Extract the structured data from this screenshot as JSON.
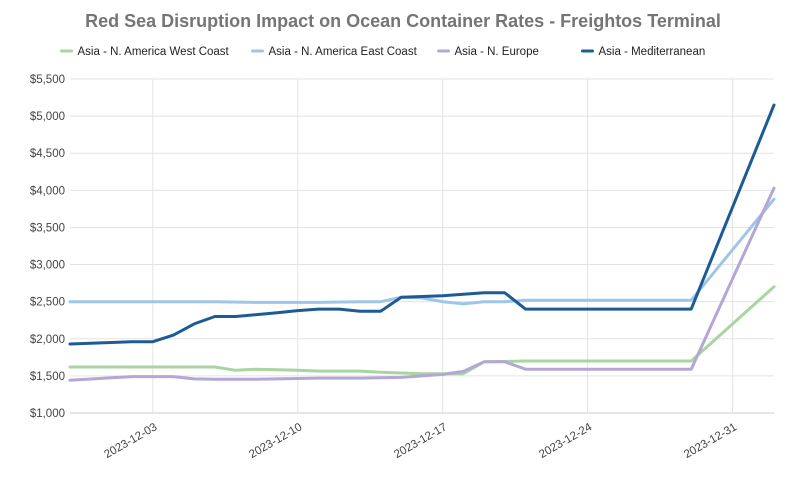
{
  "chart_data": {
    "type": "line",
    "title": "Red Sea Disruption Impact on Ocean Container Rates - Freightos Terminal",
    "xlabel": "",
    "ylabel": "",
    "x_start": "2023-11-29",
    "x_end": "2024-01-02",
    "x_ticks": [
      "2023-12-03",
      "2023-12-10",
      "2023-12-17",
      "2023-12-24",
      "2023-12-31"
    ],
    "ylim": [
      1000,
      5500
    ],
    "y_ticks": [
      1000,
      1500,
      2000,
      2500,
      3000,
      3500,
      4000,
      4500,
      5000,
      5500
    ],
    "y_tick_labels": [
      "$1,000",
      "$1,500",
      "$2,000",
      "$2,500",
      "$3,000",
      "$3,500",
      "$4,000",
      "$4,500",
      "$5,000",
      "$5,500"
    ],
    "grid": true,
    "legend_position": "top",
    "series": [
      {
        "name": "Asia - N. America West Coast",
        "color": "#a8d5a0",
        "points": [
          [
            "2023-11-29",
            1620
          ],
          [
            "2023-12-01",
            1620
          ],
          [
            "2023-12-04",
            1620
          ],
          [
            "2023-12-06",
            1620
          ],
          [
            "2023-12-07",
            1575
          ],
          [
            "2023-12-08",
            1590
          ],
          [
            "2023-12-10",
            1575
          ],
          [
            "2023-12-11",
            1565
          ],
          [
            "2023-12-13",
            1565
          ],
          [
            "2023-12-14",
            1550
          ],
          [
            "2023-12-16",
            1530
          ],
          [
            "2023-12-18",
            1530
          ],
          [
            "2023-12-19",
            1690
          ],
          [
            "2023-12-21",
            1700
          ],
          [
            "2023-12-25",
            1700
          ],
          [
            "2023-12-29",
            1700
          ],
          [
            "2024-01-02",
            2700
          ]
        ]
      },
      {
        "name": "Asia - N. America East Coast",
        "color": "#9fc5e8",
        "points": [
          [
            "2023-11-29",
            2500
          ],
          [
            "2023-12-03",
            2500
          ],
          [
            "2023-12-06",
            2500
          ],
          [
            "2023-12-08",
            2490
          ],
          [
            "2023-12-11",
            2490
          ],
          [
            "2023-12-13",
            2500
          ],
          [
            "2023-12-14",
            2500
          ],
          [
            "2023-12-15",
            2560
          ],
          [
            "2023-12-16",
            2550
          ],
          [
            "2023-12-17",
            2500
          ],
          [
            "2023-12-18",
            2470
          ],
          [
            "2023-12-19",
            2500
          ],
          [
            "2023-12-20",
            2500
          ],
          [
            "2023-12-21",
            2520
          ],
          [
            "2023-12-25",
            2520
          ],
          [
            "2023-12-29",
            2520
          ],
          [
            "2023-12-31",
            3200
          ],
          [
            "2024-01-02",
            3880
          ]
        ]
      },
      {
        "name": "Asia - N. Europe",
        "color": "#b4a7d6",
        "points": [
          [
            "2023-11-29",
            1440
          ],
          [
            "2023-12-01",
            1475
          ],
          [
            "2023-12-02",
            1490
          ],
          [
            "2023-12-04",
            1490
          ],
          [
            "2023-12-05",
            1460
          ],
          [
            "2023-12-06",
            1455
          ],
          [
            "2023-12-08",
            1455
          ],
          [
            "2023-12-11",
            1470
          ],
          [
            "2023-12-13",
            1470
          ],
          [
            "2023-12-15",
            1480
          ],
          [
            "2023-12-17",
            1520
          ],
          [
            "2023-12-18",
            1560
          ],
          [
            "2023-12-19",
            1690
          ],
          [
            "2023-12-20",
            1690
          ],
          [
            "2023-12-21",
            1590
          ],
          [
            "2023-12-25",
            1590
          ],
          [
            "2023-12-29",
            1590
          ],
          [
            "2024-01-02",
            4030
          ]
        ]
      },
      {
        "name": "Asia - Mediterranean",
        "color": "#1e5b94",
        "points": [
          [
            "2023-11-29",
            1930
          ],
          [
            "2023-12-01",
            1950
          ],
          [
            "2023-12-02",
            1960
          ],
          [
            "2023-12-03",
            1960
          ],
          [
            "2023-12-04",
            2050
          ],
          [
            "2023-12-05",
            2200
          ],
          [
            "2023-12-06",
            2300
          ],
          [
            "2023-12-07",
            2300
          ],
          [
            "2023-12-09",
            2350
          ],
          [
            "2023-12-10",
            2380
          ],
          [
            "2023-12-11",
            2400
          ],
          [
            "2023-12-12",
            2400
          ],
          [
            "2023-12-13",
            2370
          ],
          [
            "2023-12-14",
            2370
          ],
          [
            "2023-12-15",
            2560
          ],
          [
            "2023-12-17",
            2580
          ],
          [
            "2023-12-18",
            2600
          ],
          [
            "2023-12-19",
            2620
          ],
          [
            "2023-12-20",
            2620
          ],
          [
            "2023-12-21",
            2400
          ],
          [
            "2023-12-25",
            2400
          ],
          [
            "2023-12-29",
            2400
          ],
          [
            "2024-01-02",
            5150
          ]
        ]
      }
    ]
  }
}
